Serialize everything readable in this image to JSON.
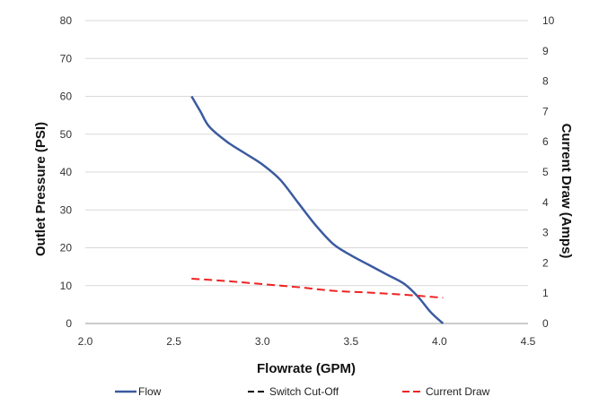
{
  "chart_data": {
    "type": "line",
    "title": "",
    "xlabel": "Flowrate (GPM)",
    "ylabel": "Outlet Pressure (PSI)",
    "y2label": "Current Draw (Amps)",
    "xlim": [
      2.0,
      4.5
    ],
    "ylim": [
      0,
      80
    ],
    "y2lim": [
      0,
      10
    ],
    "xticks": [
      "2.0",
      "2.5",
      "3.0",
      "3.5",
      "4.0",
      "4.5"
    ],
    "yticks": [
      "0",
      "10",
      "20",
      "30",
      "40",
      "50",
      "60",
      "70",
      "80"
    ],
    "y2ticks": [
      "0",
      "1",
      "2",
      "3",
      "4",
      "5",
      "6",
      "7",
      "8",
      "9",
      "10"
    ],
    "grid": "horizontal",
    "legend_position": "bottom",
    "series": [
      {
        "name": "Flow",
        "axis": "left",
        "style": "solid",
        "color": "#3b5aa0",
        "x": [
          2.6,
          2.65,
          2.7,
          2.8,
          2.9,
          3.0,
          3.1,
          3.2,
          3.3,
          3.4,
          3.5,
          3.6,
          3.7,
          3.8,
          3.88,
          3.95,
          4.02
        ],
        "y": [
          60,
          56,
          52,
          48,
          45,
          42,
          38,
          32,
          26,
          21,
          18,
          15.5,
          13,
          10.5,
          7,
          3,
          0
        ]
      },
      {
        "name": "Switch Cut-Off",
        "axis": "left",
        "style": "dashed",
        "color": "#000000",
        "x": [],
        "y": []
      },
      {
        "name": "Current Draw",
        "axis": "right",
        "style": "dashed",
        "color": "#ee2222",
        "x": [
          2.6,
          2.8,
          3.0,
          3.2,
          3.4,
          3.6,
          3.8,
          4.02
        ],
        "y": [
          1.48,
          1.4,
          1.3,
          1.2,
          1.08,
          1.02,
          0.95,
          0.85
        ]
      }
    ]
  }
}
